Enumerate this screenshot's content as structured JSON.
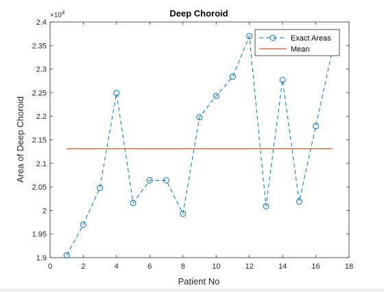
{
  "chart_data": {
    "type": "line",
    "title": "Deep Choroid",
    "xlabel": "Patient No",
    "ylabel": "Area of Deep Choroid",
    "xlim": [
      0,
      18
    ],
    "ylim": [
      1.9,
      2.4
    ],
    "y_exponent_label": "×10",
    "y_exponent": "4",
    "xticks": [
      0,
      2,
      4,
      6,
      8,
      10,
      12,
      14,
      16,
      18
    ],
    "xtick_labels": [
      "0",
      "2",
      "4",
      "6",
      "8",
      "10",
      "12",
      "14",
      "16",
      "18"
    ],
    "yticks": [
      1.9,
      1.95,
      2.0,
      2.05,
      2.1,
      2.15,
      2.2,
      2.25,
      2.3,
      2.35,
      2.4
    ],
    "ytick_labels": [
      "1.9",
      "1.95",
      "2",
      "2.05",
      "2.1",
      "2.15",
      "2.2",
      "2.25",
      "2.3",
      "2.35",
      "2.4"
    ],
    "grid": false,
    "legend_position": "top-right",
    "series": [
      {
        "name": "Exact Areas",
        "style": "dashed-circle-markers",
        "color": "#0072BD",
        "x": [
          1,
          2,
          3,
          4,
          5,
          6,
          7,
          8,
          9,
          10,
          11,
          12,
          13,
          14,
          15,
          16,
          17
        ],
        "y": [
          1.905,
          1.97,
          2.048,
          2.249,
          2.016,
          2.064,
          2.064,
          1.993,
          2.198,
          2.243,
          2.284,
          2.37,
          2.009,
          2.277,
          2.019,
          2.179,
          2.34
        ]
      },
      {
        "name": "Mean",
        "style": "solid",
        "color": "#D95319",
        "x": [
          1,
          17
        ],
        "y": [
          2.131,
          2.131
        ]
      }
    ]
  }
}
